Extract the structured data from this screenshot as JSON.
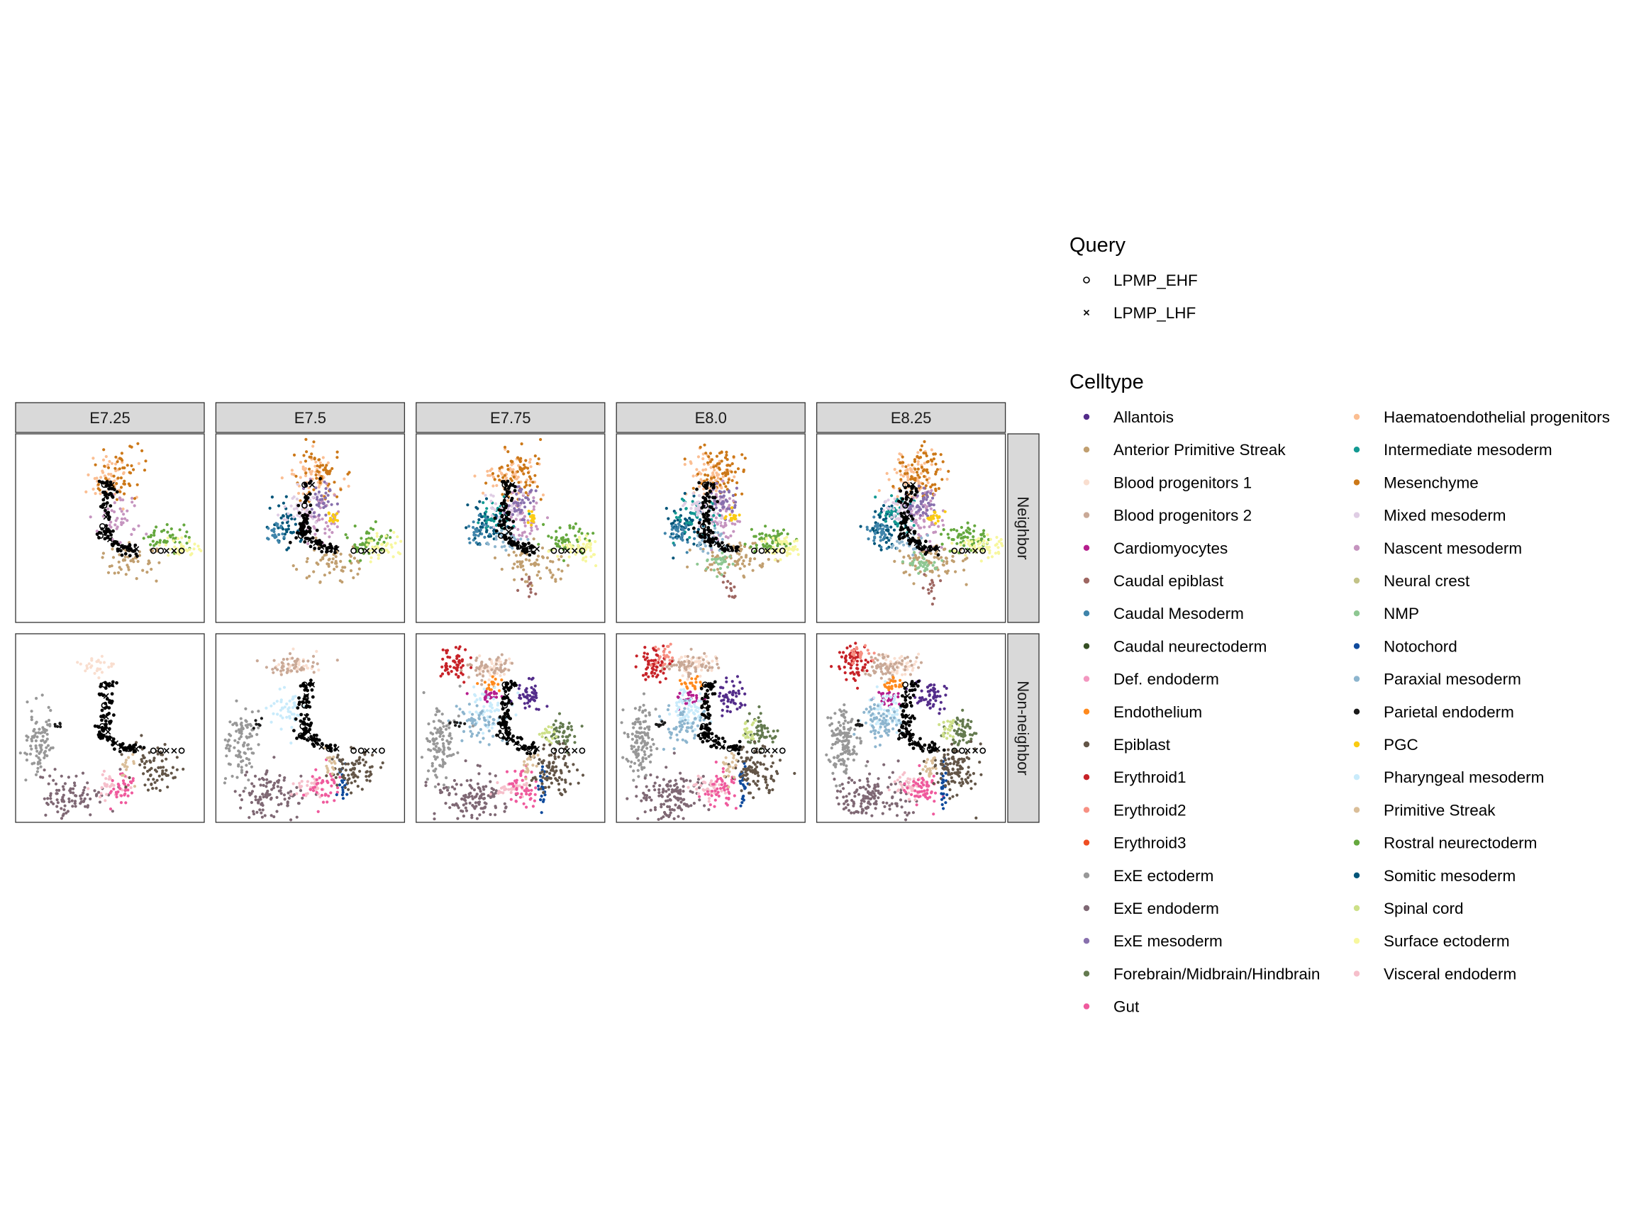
{
  "chart_data": {
    "type": "scatter",
    "facet_columns": [
      "E7.25",
      "E7.5",
      "E7.75",
      "E8.0",
      "E8.25"
    ],
    "facet_rows": [
      "Neighbor",
      "Non-neighbor"
    ],
    "axes": "none",
    "grid": false,
    "legend_placement": "right",
    "legends": [
      {
        "title": "Query",
        "entries": [
          {
            "label": "LPMP_EHF",
            "shape": "open-circle"
          },
          {
            "label": "LPMP_LHF",
            "shape": "cross"
          }
        ]
      },
      {
        "title": "Celltype",
        "entries": [
          {
            "label": "Allantois",
            "color": "#532C8A"
          },
          {
            "label": "Anterior Primitive Streak",
            "color": "#c19f70"
          },
          {
            "label": "Blood progenitors 1",
            "color": "#f9decf"
          },
          {
            "label": "Blood progenitors 2",
            "color": "#c9a997"
          },
          {
            "label": "Cardiomyocytes",
            "color": "#B51D8D"
          },
          {
            "label": "Caudal epiblast",
            "color": "#9e6762"
          },
          {
            "label": "Caudal Mesoderm",
            "color": "#3F84AA"
          },
          {
            "label": "Caudal neurectoderm",
            "color": "#354E23"
          },
          {
            "label": "Def. endoderm",
            "color": "#F397C0"
          },
          {
            "label": "Endothelium",
            "color": "#ff891c"
          },
          {
            "label": "Epiblast",
            "color": "#635547"
          },
          {
            "label": "Erythroid1",
            "color": "#C72228"
          },
          {
            "label": "Erythroid2",
            "color": "#f79083"
          },
          {
            "label": "Erythroid3",
            "color": "#EF4E22"
          },
          {
            "label": "ExE ectoderm",
            "color": "#989898"
          },
          {
            "label": "ExE endoderm",
            "color": "#7F6874"
          },
          {
            "label": "ExE mesoderm",
            "color": "#8870ad"
          },
          {
            "label": "Forebrain/Midbrain/Hindbrain",
            "color": "#647a4f"
          },
          {
            "label": "Gut",
            "color": "#EF5A9D"
          },
          {
            "label": "Haematoendothelial progenitors",
            "color": "#FBBE92"
          },
          {
            "label": "Intermediate mesoderm",
            "color": "#139992"
          },
          {
            "label": "Mesenchyme",
            "color": "#cc7818"
          },
          {
            "label": "Mixed mesoderm",
            "color": "#DFCDE4"
          },
          {
            "label": "Nascent mesoderm",
            "color": "#C594BF"
          },
          {
            "label": "Neural crest",
            "color": "#C3C388"
          },
          {
            "label": "NMP",
            "color": "#8EC792"
          },
          {
            "label": "Notochord",
            "color": "#0F4A9C"
          },
          {
            "label": "Paraxial mesoderm",
            "color": "#8DB5CE"
          },
          {
            "label": "Parietal endoderm",
            "color": "#1A1A1A"
          },
          {
            "label": "PGC",
            "color": "#FACB12"
          },
          {
            "label": "Pharyngeal mesoderm",
            "color": "#C9EBFB"
          },
          {
            "label": "Primitive Streak",
            "color": "#DABE99"
          },
          {
            "label": "Rostral neurectoderm",
            "color": "#65A83E"
          },
          {
            "label": "Somitic mesoderm",
            "color": "#005579"
          },
          {
            "label": "Spinal cord",
            "color": "#CDE088"
          },
          {
            "label": "Surface ectoderm",
            "color": "#f7f79e"
          },
          {
            "label": "Visceral endoderm",
            "color": "#F6BFCB"
          }
        ]
      }
    ]
  }
}
